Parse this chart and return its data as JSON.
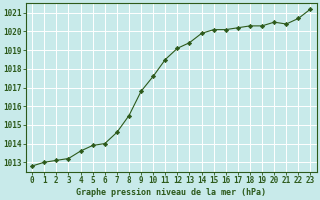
{
  "x": [
    0,
    1,
    2,
    3,
    4,
    5,
    6,
    7,
    8,
    9,
    10,
    11,
    12,
    13,
    14,
    15,
    16,
    17,
    18,
    19,
    20,
    21,
    22,
    23
  ],
  "y": [
    1012.8,
    1013.0,
    1013.1,
    1013.2,
    1013.6,
    1013.9,
    1014.0,
    1014.6,
    1015.5,
    1016.8,
    1017.6,
    1018.5,
    1019.1,
    1019.4,
    1019.9,
    1020.1,
    1020.1,
    1020.2,
    1020.3,
    1020.3,
    1020.5,
    1020.4,
    1020.7,
    1021.2
  ],
  "line_color": "#2d5a1b",
  "marker": "D",
  "marker_size": 2.2,
  "bg_color": "#c8eaea",
  "grid_color": "#ffffff",
  "xlabel": "Graphe pression niveau de la mer (hPa)",
  "xlabel_color": "#2d5a1b",
  "tick_color": "#2d5a1b",
  "ylim_min": 1012.5,
  "ylim_max": 1021.5,
  "xlim_min": -0.5,
  "xlim_max": 23.5,
  "yticks": [
    1013,
    1014,
    1015,
    1016,
    1017,
    1018,
    1019,
    1020,
    1021
  ],
  "xtick_labels": [
    "0",
    "1",
    "2",
    "3",
    "4",
    "5",
    "6",
    "7",
    "8",
    "9",
    "10",
    "11",
    "12",
    "13",
    "14",
    "15",
    "16",
    "17",
    "18",
    "19",
    "20",
    "21",
    "22",
    "23"
  ],
  "border_color": "#2d5a1b",
  "tick_fontsize": 5.5,
  "xlabel_fontsize": 6.0,
  "linewidth": 0.8
}
